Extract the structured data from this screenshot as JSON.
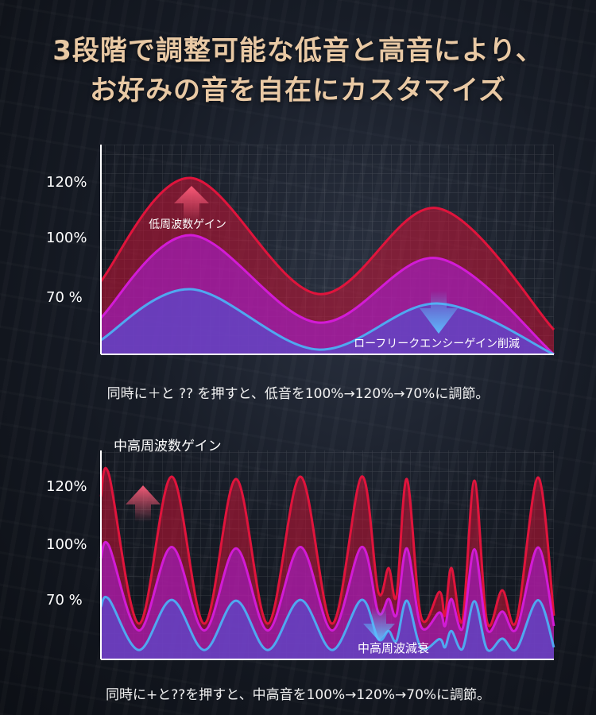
{
  "header": {
    "line1": "3段階で調整可能な低音と高音により、",
    "line2": "お好みの音を自在にカスタマイズ"
  },
  "colors": {
    "red": "#e0143c",
    "magenta": "#d21bd6",
    "blue": "#4fa8f0",
    "headline": "#e9c9a4"
  },
  "chart_data": [
    {
      "type": "area",
      "yticks": [
        "120%",
        "100%",
        "70 %"
      ],
      "annotations": {
        "boost_label": "低周波数ゲイン",
        "cut_label": "ローフリークエンシーゲイン削減"
      },
      "series": [
        {
          "level": 120,
          "values": [
            120,
            70,
            110,
            40
          ]
        },
        {
          "level": 100,
          "values": [
            100,
            40,
            85,
            10
          ]
        },
        {
          "level": 70,
          "values": [
            70,
            10,
            55,
            0
          ]
        }
      ],
      "caption": "同時に＋と ?? を押すと、低音を100%→120%→70%に調節。"
    },
    {
      "type": "area",
      "title": "中高周波数ゲイン",
      "yticks": [
        "120%",
        "100%",
        "70 %"
      ],
      "annotations": {
        "cut_label": "中高周波減衰"
      },
      "series": [
        {
          "level": 120
        },
        {
          "level": 100
        },
        {
          "level": 70
        }
      ],
      "caption": "同時に+と??を押すと、中高音を100%→120%→70%に調節。"
    }
  ]
}
